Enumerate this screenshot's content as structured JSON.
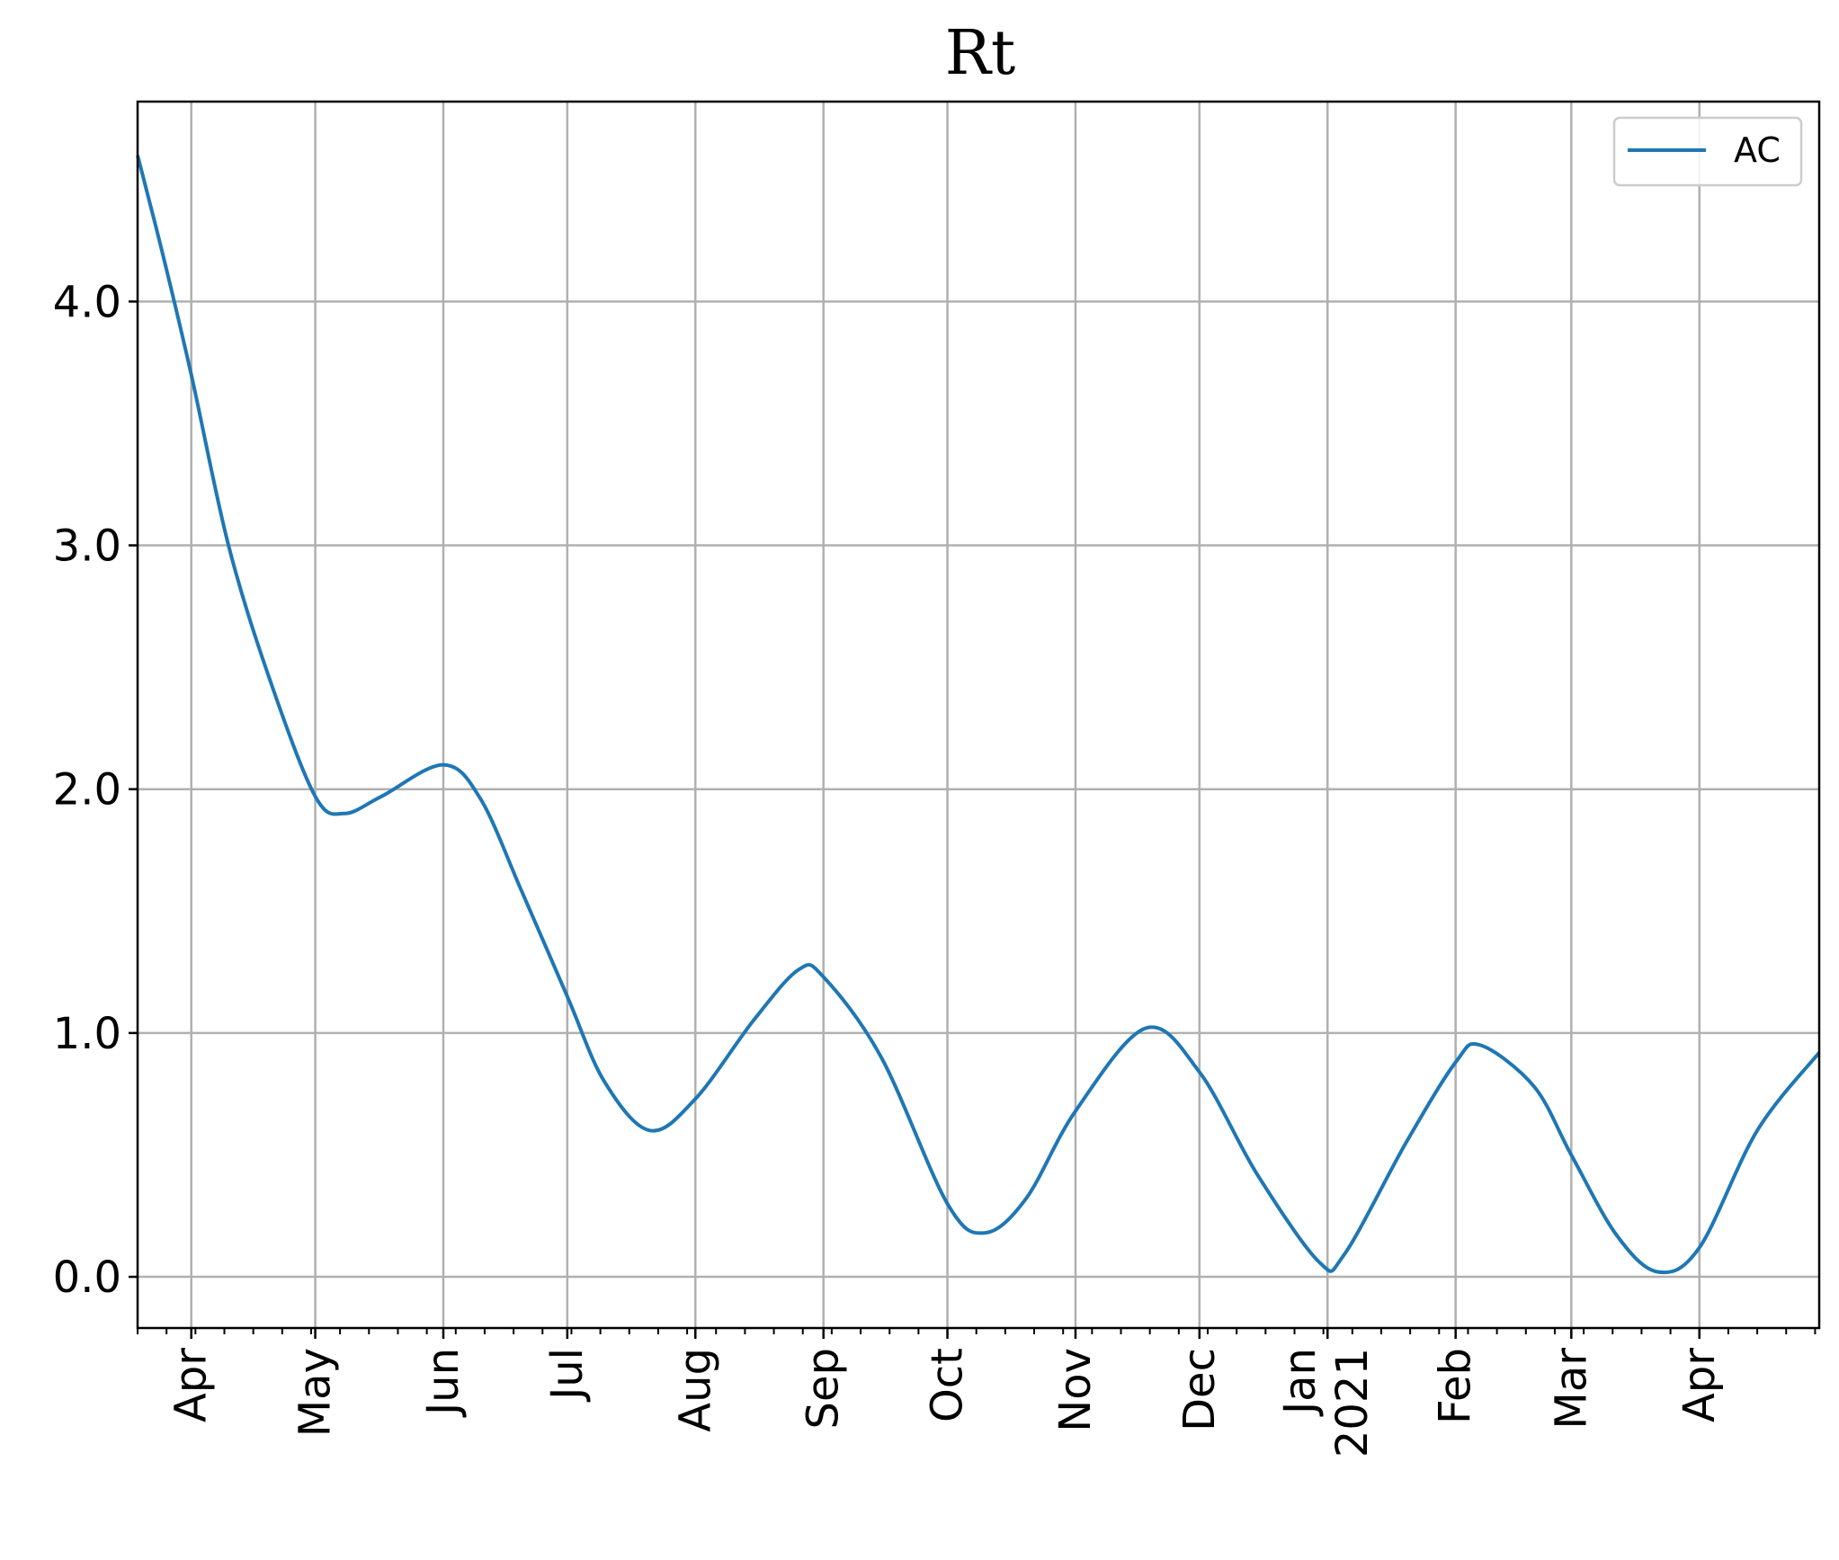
{
  "chart_data": {
    "type": "line",
    "title": "Rt",
    "xlabel": "",
    "ylabel": "",
    "x_axis": "date",
    "xlim": [
      "2020-03-19",
      "2021-04-30"
    ],
    "ylim": [
      -0.21,
      4.82
    ],
    "yticks": [
      0.0,
      1.0,
      2.0,
      3.0,
      4.0
    ],
    "ytick_labels": [
      "0.0",
      "1.0",
      "2.0",
      "3.0",
      "4.0"
    ],
    "xticks": [
      {
        "date": "2020-04-01",
        "label": "Apr"
      },
      {
        "date": "2020-05-01",
        "label": "May"
      },
      {
        "date": "2020-06-01",
        "label": "Jun"
      },
      {
        "date": "2020-07-01",
        "label": "Jul"
      },
      {
        "date": "2020-08-01",
        "label": "Aug"
      },
      {
        "date": "2020-09-01",
        "label": "Sep"
      },
      {
        "date": "2020-10-01",
        "label": "Oct"
      },
      {
        "date": "2020-11-01",
        "label": "Nov"
      },
      {
        "date": "2020-12-01",
        "label": "Dec"
      },
      {
        "date": "2021-01-01",
        "label": "Jan",
        "label2": "2021"
      },
      {
        "date": "2021-02-01",
        "label": "Feb"
      },
      {
        "date": "2021-03-01",
        "label": "Mar"
      },
      {
        "date": "2021-04-01",
        "label": "Apr"
      }
    ],
    "grid": true,
    "legend_position": "top-right",
    "series": [
      {
        "name": "AC",
        "color": "#1f77b4",
        "points": [
          [
            "2020-03-19",
            4.6
          ],
          [
            "2020-03-25",
            4.2
          ],
          [
            "2020-04-01",
            3.7
          ],
          [
            "2020-04-10",
            3.0
          ],
          [
            "2020-04-20",
            2.45
          ],
          [
            "2020-05-01",
            1.97
          ],
          [
            "2020-05-08",
            1.9
          ],
          [
            "2020-05-17",
            1.97
          ],
          [
            "2020-06-01",
            2.1
          ],
          [
            "2020-06-10",
            1.96
          ],
          [
            "2020-06-20",
            1.58
          ],
          [
            "2020-07-01",
            1.15
          ],
          [
            "2020-07-10",
            0.8
          ],
          [
            "2020-07-21",
            0.6
          ],
          [
            "2020-08-01",
            0.73
          ],
          [
            "2020-08-15",
            1.05
          ],
          [
            "2020-08-26",
            1.26
          ],
          [
            "2020-09-01",
            1.23
          ],
          [
            "2020-09-15",
            0.9
          ],
          [
            "2020-10-01",
            0.3
          ],
          [
            "2020-10-10",
            0.18
          ],
          [
            "2020-10-20",
            0.32
          ],
          [
            "2020-11-01",
            0.68
          ],
          [
            "2020-11-18",
            1.02
          ],
          [
            "2020-12-01",
            0.84
          ],
          [
            "2020-12-15",
            0.42
          ],
          [
            "2020-12-30",
            0.06
          ],
          [
            "2021-01-05",
            0.09
          ],
          [
            "2021-01-20",
            0.55
          ],
          [
            "2021-02-01",
            0.88
          ],
          [
            "2021-02-07",
            0.95
          ],
          [
            "2021-02-20",
            0.78
          ],
          [
            "2021-03-01",
            0.5
          ],
          [
            "2021-03-12",
            0.17
          ],
          [
            "2021-03-22",
            0.02
          ],
          [
            "2021-04-01",
            0.12
          ],
          [
            "2021-04-15",
            0.6
          ],
          [
            "2021-04-30",
            0.92
          ]
        ]
      }
    ]
  }
}
